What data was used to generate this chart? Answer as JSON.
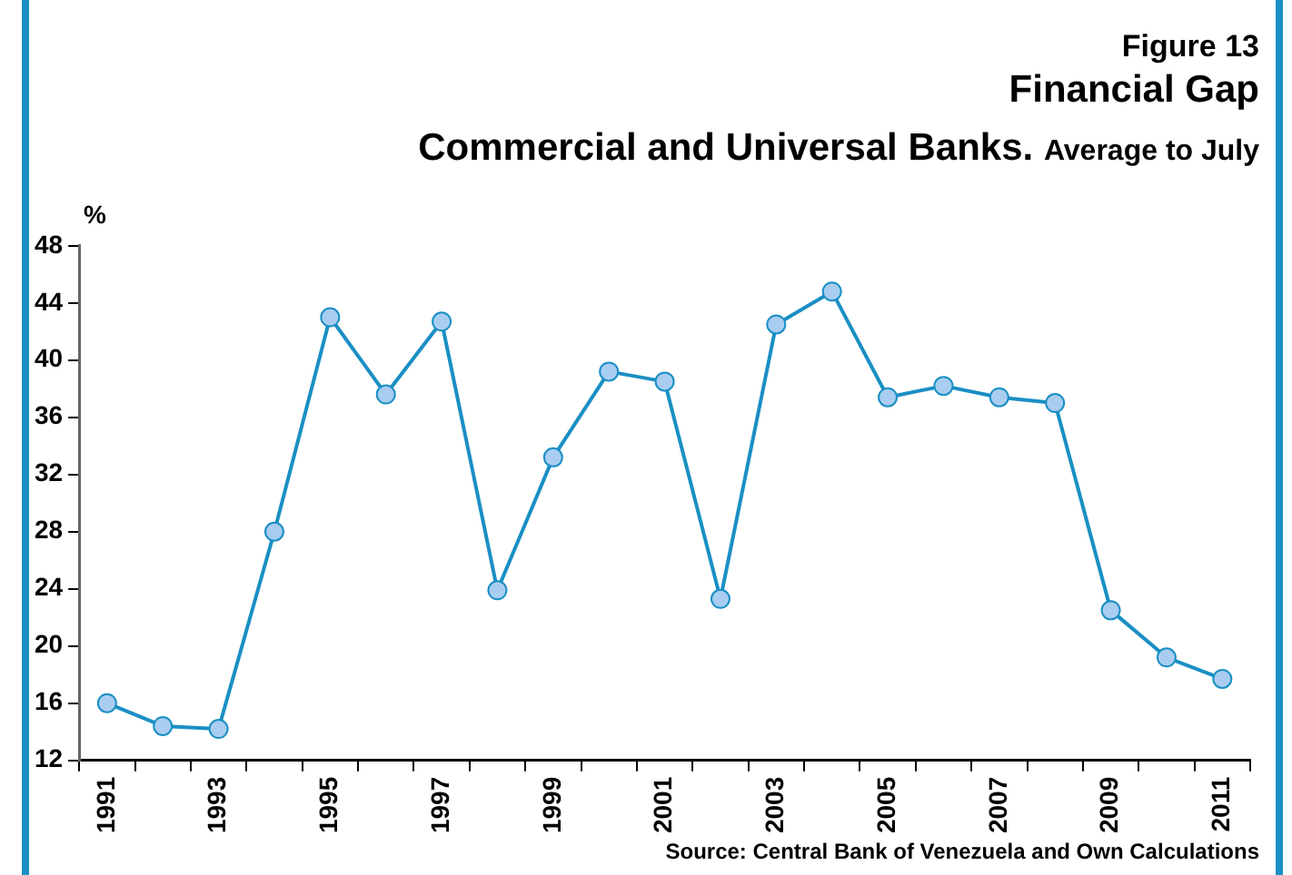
{
  "chart_data": {
    "type": "line",
    "title": "Financial Gap",
    "subtitle": "Commercial and Universal Banks.",
    "ylabel": "%",
    "annotations": [
      "Figure 13",
      "Average to July",
      "Source:  Central Bank of Venezuela and Own Calculations"
    ],
    "categories": [
      "1991",
      null,
      "1993",
      null,
      "1995",
      null,
      "1997",
      null,
      "1999",
      null,
      "2001",
      null,
      "2003",
      null,
      "2005",
      null,
      "2007",
      null,
      "2009",
      null,
      "2011"
    ],
    "series": [
      {
        "color": "#1a8fc4",
        "values": [
          16.0,
          14.4,
          14.2,
          28.0,
          43.0,
          37.6,
          42.7,
          23.9,
          33.2,
          39.2,
          38.5,
          23.3,
          42.5,
          44.8,
          37.4,
          38.2,
          37.4,
          37.0,
          22.5,
          19.2,
          17.7
        ]
      }
    ],
    "ylim": [
      12,
      48
    ],
    "yticks": [
      12,
      16,
      20,
      24,
      28,
      32,
      36,
      40,
      44,
      48
    ],
    "grid": false,
    "legend": false,
    "marker": "circle",
    "line_style": "solid"
  }
}
